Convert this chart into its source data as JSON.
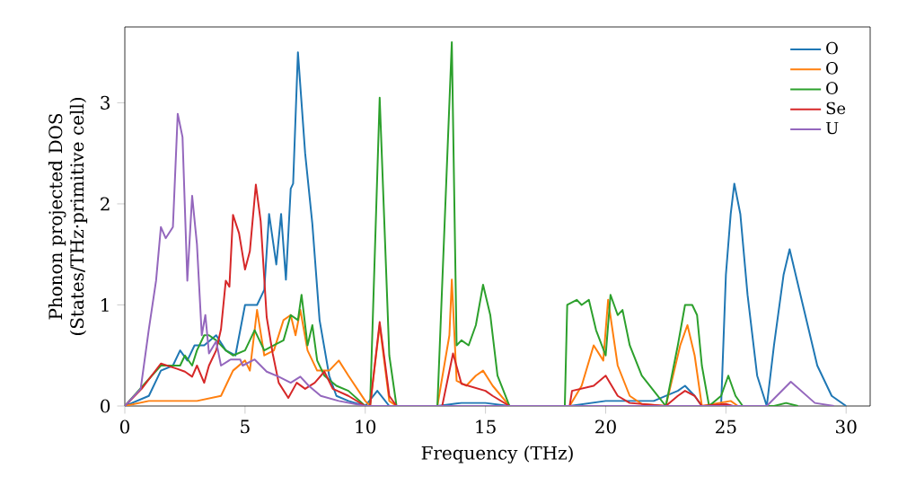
{
  "chart_data": {
    "type": "line",
    "xlabel": "Frequency (THz)",
    "ylabel": "Phonon projected DOS (States/THz·primitive cell)",
    "xlim": [
      0,
      31
    ],
    "ylim": [
      0,
      3.75
    ],
    "xticks": [
      0,
      5,
      10,
      15,
      20,
      25,
      30
    ],
    "yticks": [
      0,
      1,
      2,
      3
    ],
    "legend": "top right",
    "grid": false,
    "series": [
      {
        "name": "O",
        "color": "#1f77b4",
        "x": [
          0,
          1,
          1.5,
          2,
          2.3,
          2.6,
          2.9,
          3.3,
          3.8,
          4.2,
          4.6,
          5,
          5.5,
          5.8,
          6.0,
          6.3,
          6.5,
          6.7,
          6.9,
          7.0,
          7.2,
          7.5,
          7.8,
          8.1,
          8.5,
          8.8,
          9.3,
          10,
          10.5,
          11,
          13,
          14,
          15,
          16,
          18.5,
          20,
          22,
          23,
          23.3,
          23.7,
          24,
          24.8,
          25.0,
          25.2,
          25.35,
          25.6,
          25.9,
          26.3,
          26.7,
          27.0,
          27.4,
          27.65,
          28.2,
          28.8,
          29.4,
          30
        ],
        "values": [
          0,
          0.1,
          0.35,
          0.4,
          0.55,
          0.45,
          0.6,
          0.6,
          0.7,
          0.55,
          0.5,
          1.0,
          1.0,
          1.15,
          1.9,
          1.4,
          1.9,
          1.25,
          2.15,
          2.2,
          3.5,
          2.5,
          1.8,
          0.85,
          0.3,
          0.1,
          0.05,
          0,
          0.15,
          0,
          0,
          0.03,
          0.03,
          0,
          0,
          0.05,
          0.05,
          0.15,
          0.2,
          0.1,
          0,
          0,
          1.3,
          1.9,
          2.2,
          1.9,
          1.1,
          0.3,
          0,
          0.6,
          1.3,
          1.55,
          1.0,
          0.4,
          0.1,
          0
        ]
      },
      {
        "name": "O",
        "color": "#ff7f0e",
        "x": [
          0,
          1,
          2,
          3,
          4,
          4.5,
          5,
          5.2,
          5.5,
          5.8,
          6.2,
          6.6,
          6.9,
          7.1,
          7.3,
          7.6,
          8.0,
          8.5,
          8.9,
          9.3,
          10,
          10.2,
          10.6,
          11,
          11.3,
          13,
          13.5,
          13.6,
          13.8,
          14.2,
          14.6,
          14.9,
          15.3,
          16,
          18.5,
          19,
          19.5,
          19.9,
          20.1,
          20.5,
          21,
          21.5,
          22.5,
          23.1,
          23.4,
          23.7,
          24,
          25.2,
          25.5
        ],
        "values": [
          0,
          0.05,
          0.05,
          0.05,
          0.1,
          0.35,
          0.45,
          0.35,
          0.95,
          0.5,
          0.55,
          0.85,
          0.9,
          0.7,
          0.95,
          0.55,
          0.35,
          0.35,
          0.45,
          0.3,
          0.05,
          0,
          0.8,
          0.05,
          0,
          0,
          0.7,
          1.25,
          0.25,
          0.2,
          0.3,
          0.35,
          0.2,
          0,
          0,
          0.2,
          0.6,
          0.45,
          1.05,
          0.4,
          0.1,
          0.02,
          0,
          0.6,
          0.8,
          0.5,
          0,
          0.05,
          0
        ]
      },
      {
        "name": "O",
        "color": "#2ca02c",
        "x": [
          0,
          1.5,
          2.3,
          2.5,
          2.8,
          3.0,
          3.3,
          3.5,
          3.8,
          4.2,
          4.5,
          5,
          5.4,
          5.8,
          6.2,
          6.6,
          6.9,
          7.2,
          7.35,
          7.6,
          7.8,
          8.0,
          8.3,
          8.8,
          9.3,
          10,
          10.2,
          10.6,
          11.0,
          11.3,
          13,
          13.6,
          13.8,
          14.0,
          14.3,
          14.6,
          14.9,
          15.2,
          15.5,
          16,
          18.3,
          18.4,
          18.8,
          19,
          19.3,
          19.6,
          20,
          20.2,
          20.5,
          20.7,
          21,
          21.5,
          22,
          22.5,
          23,
          23.3,
          23.6,
          23.8,
          24,
          24.3,
          24.8,
          25.1,
          25.4,
          25.7,
          27,
          27.5,
          28
        ],
        "values": [
          0,
          0.4,
          0.4,
          0.5,
          0.4,
          0.55,
          0.7,
          0.7,
          0.65,
          0.55,
          0.5,
          0.55,
          0.75,
          0.55,
          0.6,
          0.65,
          0.9,
          0.85,
          1.1,
          0.6,
          0.8,
          0.45,
          0.3,
          0.2,
          0.15,
          0,
          0,
          3.05,
          0.5,
          0,
          0,
          3.6,
          0.6,
          0.65,
          0.6,
          0.8,
          1.2,
          0.9,
          0.3,
          0,
          0,
          1.0,
          1.05,
          1.0,
          1.05,
          0.75,
          0.5,
          1.1,
          0.9,
          0.95,
          0.6,
          0.3,
          0.15,
          0,
          0.6,
          1.0,
          1.0,
          0.9,
          0.4,
          0,
          0.1,
          0.3,
          0.1,
          0,
          0,
          0.03,
          0
        ]
      },
      {
        "name": "Se",
        "color": "#d62728",
        "x": [
          0,
          0.7,
          1.5,
          2.15,
          2.5,
          2.8,
          3.0,
          3.3,
          3.5,
          3.8,
          4.0,
          4.2,
          4.35,
          4.5,
          4.75,
          5.0,
          5.2,
          5.45,
          5.65,
          5.9,
          6.15,
          6.4,
          6.8,
          7.15,
          7.5,
          7.9,
          8.3,
          8.65,
          9.3,
          10,
          10.2,
          10.6,
          11,
          11.3,
          13.2,
          13.65,
          14,
          15,
          15.3,
          16,
          18.5,
          18.6,
          19.5,
          20,
          20.5,
          21,
          22.5,
          23,
          23.3,
          23.7,
          24,
          25,
          25.3
        ],
        "values": [
          0,
          0.17,
          0.42,
          0.37,
          0.34,
          0.29,
          0.4,
          0.23,
          0.4,
          0.55,
          0.76,
          1.24,
          1.18,
          1.89,
          1.71,
          1.35,
          1.53,
          2.19,
          1.83,
          0.88,
          0.52,
          0.23,
          0.08,
          0.23,
          0.17,
          0.23,
          0.34,
          0.17,
          0.1,
          0,
          0,
          0.83,
          0.1,
          0,
          0,
          0.52,
          0.22,
          0.15,
          0.1,
          0,
          0,
          0.15,
          0.2,
          0.3,
          0.1,
          0.03,
          0,
          0.1,
          0.15,
          0.1,
          0,
          0.02,
          0
        ]
      },
      {
        "name": "U",
        "color": "#9467bd",
        "x": [
          0,
          0.66,
          1.0,
          1.3,
          1.5,
          1.7,
          2.0,
          2.2,
          2.4,
          2.6,
          2.8,
          3.0,
          3.2,
          3.35,
          3.5,
          3.8,
          4.0,
          4.4,
          4.8,
          4.9,
          5.4,
          5.9,
          6.4,
          6.9,
          7.3,
          7.65,
          8.15,
          8.9,
          10,
          26.7,
          27.7,
          28.7,
          29.5
        ],
        "values": [
          0,
          0.17,
          0.76,
          1.24,
          1.77,
          1.66,
          1.77,
          2.89,
          2.66,
          1.24,
          2.08,
          1.6,
          0.7,
          0.9,
          0.52,
          0.64,
          0.4,
          0.46,
          0.46,
          0.4,
          0.46,
          0.34,
          0.29,
          0.23,
          0.29,
          0.2,
          0.1,
          0.05,
          0,
          0,
          0.24,
          0.03,
          0
        ]
      }
    ]
  }
}
